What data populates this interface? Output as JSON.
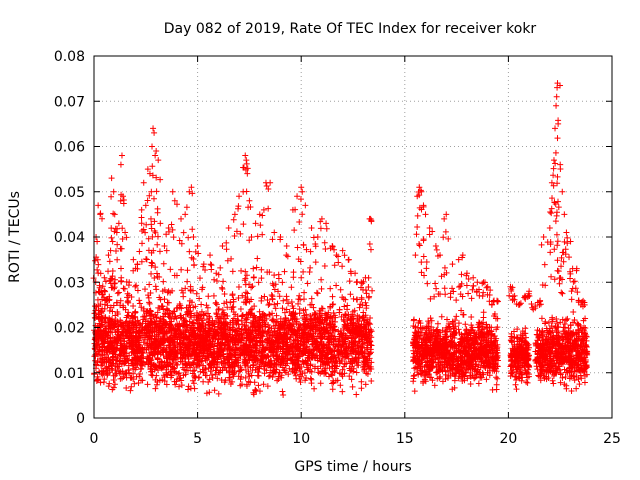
{
  "chart_data": {
    "type": "scatter",
    "title": "Day 082 of 2019, Rate Of TEC Index for receiver kokr",
    "xlabel": "GPS time / hours",
    "ylabel": "ROTI / TECUs",
    "xlim": [
      0,
      25
    ],
    "ylim": [
      0,
      0.08
    ],
    "x_ticks": [
      0,
      5,
      10,
      15,
      20,
      25
    ],
    "x_tick_labels": [
      "0",
      "5",
      "10",
      "15",
      "20",
      "25"
    ],
    "y_ticks": [
      0,
      0.01,
      0.02,
      0.03,
      0.04,
      0.05,
      0.06,
      0.07,
      0.08
    ],
    "y_tick_labels": [
      "0",
      "0.01",
      "0.02",
      "0.03",
      "0.04",
      "0.05",
      "0.06",
      "0.07",
      "0.08"
    ],
    "grid": true,
    "marker": "+",
    "color": "#ff0000",
    "series": [
      {
        "name": "ROTI",
        "points": [
          [
            0.1,
            0.04
          ],
          [
            0.15,
            0.039
          ],
          [
            0.2,
            0.047
          ],
          [
            0.3,
            0.045
          ],
          [
            0.35,
            0.028
          ],
          [
            0.5,
            0.031
          ],
          [
            0.6,
            0.026
          ],
          [
            0.7,
            0.036
          ],
          [
            0.8,
            0.037
          ],
          [
            0.9,
            0.039
          ],
          [
            0.85,
            0.053
          ],
          [
            0.95,
            0.05
          ],
          [
            1.0,
            0.045
          ],
          [
            1.1,
            0.041
          ],
          [
            1.2,
            0.043
          ],
          [
            1.3,
            0.056
          ],
          [
            1.35,
            0.058
          ],
          [
            1.4,
            0.049
          ],
          [
            1.5,
            0.041
          ],
          [
            1.7,
            0.03
          ],
          [
            1.9,
            0.035
          ],
          [
            2.1,
            0.034
          ],
          [
            2.3,
            0.046
          ],
          [
            2.4,
            0.052
          ],
          [
            2.5,
            0.047
          ],
          [
            2.6,
            0.055
          ],
          [
            2.7,
            0.054
          ],
          [
            2.75,
            0.044
          ],
          [
            2.8,
            0.06
          ],
          [
            2.85,
            0.064
          ],
          [
            2.9,
            0.063
          ],
          [
            2.95,
            0.058
          ],
          [
            3.0,
            0.059
          ],
          [
            3.1,
            0.057
          ],
          [
            3.2,
            0.043
          ],
          [
            3.4,
            0.038
          ],
          [
            3.6,
            0.042
          ],
          [
            3.8,
            0.05
          ],
          [
            3.9,
            0.048
          ],
          [
            4.2,
            0.044
          ],
          [
            4.4,
            0.045
          ],
          [
            4.6,
            0.05
          ],
          [
            4.7,
            0.051
          ],
          [
            4.8,
            0.04
          ],
          [
            5.0,
            0.038
          ],
          [
            5.3,
            0.034
          ],
          [
            5.6,
            0.036
          ],
          [
            5.9,
            0.032
          ],
          [
            6.2,
            0.038
          ],
          [
            6.5,
            0.042
          ],
          [
            6.8,
            0.045
          ],
          [
            7.0,
            0.049
          ],
          [
            7.2,
            0.05
          ],
          [
            7.3,
            0.058
          ],
          [
            7.35,
            0.057
          ],
          [
            7.4,
            0.054
          ],
          [
            7.5,
            0.048
          ],
          [
            7.6,
            0.04
          ],
          [
            7.8,
            0.043
          ],
          [
            8.0,
            0.045
          ],
          [
            8.2,
            0.046
          ],
          [
            8.3,
            0.052
          ],
          [
            8.5,
            0.052
          ],
          [
            8.7,
            0.041
          ],
          [
            9.0,
            0.04
          ],
          [
            9.3,
            0.038
          ],
          [
            9.6,
            0.046
          ],
          [
            9.8,
            0.049
          ],
          [
            10.0,
            0.051
          ],
          [
            10.05,
            0.05
          ],
          [
            10.2,
            0.047
          ],
          [
            10.5,
            0.042
          ],
          [
            10.8,
            0.04
          ],
          [
            11.0,
            0.044
          ],
          [
            11.2,
            0.043
          ],
          [
            11.5,
            0.038
          ],
          [
            11.7,
            0.036
          ],
          [
            12.0,
            0.037
          ],
          [
            12.3,
            0.035
          ],
          [
            12.6,
            0.032
          ],
          [
            12.9,
            0.03
          ],
          [
            13.1,
            0.031
          ],
          [
            13.3,
            0.044
          ],
          [
            13.35,
            0.044
          ],
          [
            15.6,
            0.049
          ],
          [
            15.7,
            0.051
          ],
          [
            15.8,
            0.05
          ],
          [
            15.9,
            0.047
          ],
          [
            16.0,
            0.045
          ],
          [
            16.2,
            0.042
          ],
          [
            16.5,
            0.038
          ],
          [
            16.7,
            0.036
          ],
          [
            16.9,
            0.044
          ],
          [
            17.0,
            0.045
          ],
          [
            17.3,
            0.034
          ],
          [
            17.6,
            0.035
          ],
          [
            17.8,
            0.036
          ],
          [
            18.0,
            0.032
          ],
          [
            18.3,
            0.031
          ],
          [
            18.5,
            0.03
          ],
          [
            18.8,
            0.03
          ],
          [
            19.0,
            0.029
          ],
          [
            19.2,
            0.025
          ],
          [
            19.4,
            0.022
          ],
          [
            20.1,
            0.029
          ],
          [
            20.3,
            0.027
          ],
          [
            20.5,
            0.025
          ],
          [
            20.8,
            0.027
          ],
          [
            21.0,
            0.028
          ],
          [
            21.2,
            0.024
          ],
          [
            21.5,
            0.025
          ],
          [
            21.7,
            0.04
          ],
          [
            22.0,
            0.042
          ],
          [
            22.1,
            0.052
          ],
          [
            22.2,
            0.057
          ],
          [
            22.25,
            0.064
          ],
          [
            22.3,
            0.069
          ],
          [
            22.33,
            0.071
          ],
          [
            22.35,
            0.073
          ],
          [
            22.37,
            0.074
          ],
          [
            22.4,
            0.065
          ],
          [
            22.5,
            0.056
          ],
          [
            22.6,
            0.05
          ],
          [
            22.7,
            0.045
          ],
          [
            22.8,
            0.041
          ],
          [
            23.0,
            0.039
          ],
          [
            23.1,
            0.033
          ],
          [
            23.3,
            0.033
          ],
          [
            23.5,
            0.025
          ],
          [
            23.7,
            0.022
          ]
        ],
        "dense_bands": [
          {
            "x_range": [
              0.0,
              13.4
            ],
            "y_range": [
              0.004,
              0.026
            ]
          },
          {
            "x_range": [
              15.4,
              19.5
            ],
            "y_range": [
              0.005,
              0.022
            ]
          },
          {
            "x_range": [
              20.1,
              21.0
            ],
            "y_range": [
              0.006,
              0.019
            ]
          },
          {
            "x_range": [
              21.3,
              23.8
            ],
            "y_range": [
              0.005,
              0.022
            ]
          }
        ]
      }
    ]
  }
}
